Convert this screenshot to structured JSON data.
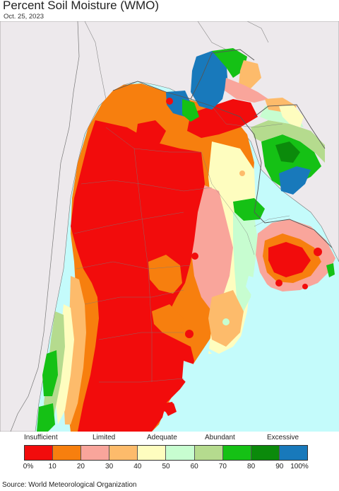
{
  "title": "Percent Soil Moisture (WMO)",
  "date": "Oct. 25, 2023",
  "source": "Source: World Meteorological Organization",
  "legend": {
    "categories": [
      {
        "label": "Insufficient"
      },
      {
        "label": "Limited"
      },
      {
        "label": "Adequate"
      },
      {
        "label": "Abundant"
      },
      {
        "label": "Excessive"
      }
    ],
    "colors": [
      "#f20c0c",
      "#f77f0e",
      "#f9a59b",
      "#fdbb6b",
      "#fefdbf",
      "#c7fdd0",
      "#b5db8e",
      "#15c115",
      "#0b8a0b",
      "#1879bb"
    ],
    "ticks": [
      "0%",
      "10",
      "20",
      "30",
      "40",
      "50",
      "60",
      "70",
      "80",
      "90",
      "100%"
    ]
  },
  "map": {
    "ocean_color": "#c4fbfb",
    "land_outside_color": "#ede9ec",
    "colors": {
      "insufficient": "#f20c0c",
      "limited": "#f77f0e",
      "pink": "#f9a59b",
      "peach": "#fdbb6b",
      "adequate": "#fefdbf",
      "mint": "#c7fdd0",
      "abundant_light": "#b5db8e",
      "abundant": "#15c115",
      "abundant_dark": "#0b8a0b",
      "excessive": "#1879bb"
    }
  }
}
